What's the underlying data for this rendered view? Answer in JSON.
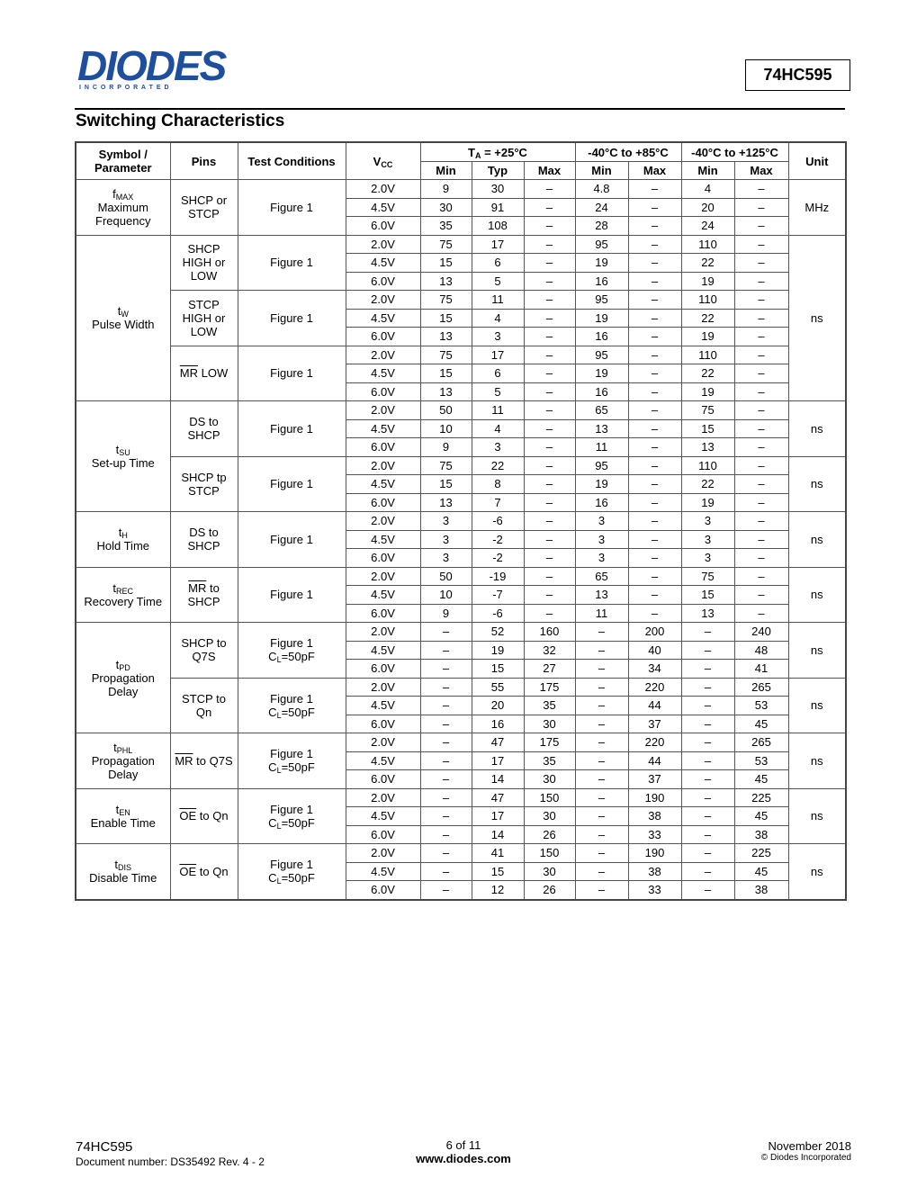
{
  "header": {
    "logo": "DIODES",
    "logo_sub": "I N C O R P O R A T E D",
    "part": "74HC595"
  },
  "section_title": "Switching Characteristics",
  "table": {
    "headers": {
      "symbol": "Symbol / Parameter",
      "pins": "Pins",
      "conditions": "Test Conditions",
      "vcc": {
        "pre": "V",
        "sub": "CC"
      },
      "ta25": {
        "pre": "T",
        "sub": "A",
        "post": " = +25°C"
      },
      "ta85": "-40°C to +85°C",
      "ta125": "-40°C to +125°C",
      "unit": "Unit",
      "sub": [
        "Min",
        "Typ",
        "Max",
        "Min",
        "Max",
        "Min",
        "Max"
      ]
    },
    "groups": [
      {
        "symbol": {
          "pre": "f",
          "sub": "MAX"
        },
        "param": [
          "Maximum",
          "Frequency"
        ],
        "unit": "MHz",
        "blocks": [
          {
            "pins": [
              "SHCP or",
              "STCP"
            ],
            "cond": [
              "Figure 1"
            ],
            "rows": [
              [
                "2.0V",
                9,
                30,
                "–",
                4.8,
                "–",
                4,
                "–"
              ],
              [
                "4.5V",
                30,
                91,
                "–",
                24,
                "–",
                20,
                "–"
              ],
              [
                "6.0V",
                35,
                108,
                "–",
                28,
                "–",
                24,
                "–"
              ]
            ]
          }
        ]
      },
      {
        "symbol": {
          "pre": "t",
          "sub": "W"
        },
        "param": [
          "Pulse Width"
        ],
        "unit": "ns",
        "blocks": [
          {
            "pins": [
              "SHCP",
              "HIGH or",
              "LOW"
            ],
            "cond": [
              "Figure 1"
            ],
            "rows": [
              [
                "2.0V",
                75,
                17,
                "–",
                95,
                "–",
                110,
                "–"
              ],
              [
                "4.5V",
                15,
                6,
                "–",
                19,
                "–",
                22,
                "–"
              ],
              [
                "6.0V",
                13,
                5,
                "–",
                16,
                "–",
                19,
                "–"
              ]
            ]
          },
          {
            "pins": [
              "STCP",
              "HIGH or",
              "LOW"
            ],
            "cond": [
              "Figure 1"
            ],
            "rows": [
              [
                "2.0V",
                75,
                11,
                "–",
                95,
                "–",
                110,
                "–"
              ],
              [
                "4.5V",
                15,
                4,
                "–",
                19,
                "–",
                22,
                "–"
              ],
              [
                "6.0V",
                13,
                3,
                "–",
                16,
                "–",
                19,
                "–"
              ]
            ]
          },
          {
            "pins": [
              {
                "over": "MR",
                "text": " LOW"
              }
            ],
            "cond": [
              "Figure 1"
            ],
            "rows": [
              [
                "2.0V",
                75,
                17,
                "–",
                95,
                "–",
                110,
                "–"
              ],
              [
                "4.5V",
                15,
                6,
                "–",
                19,
                "–",
                22,
                "–"
              ],
              [
                "6.0V",
                13,
                5,
                "–",
                16,
                "–",
                19,
                "–"
              ]
            ]
          }
        ]
      },
      {
        "symbol": {
          "pre": "t",
          "sub": "SU"
        },
        "param": [
          "Set-up Time"
        ],
        "blocks": [
          {
            "pins": [
              "DS to",
              "SHCP"
            ],
            "cond": [
              "Figure 1"
            ],
            "unit": "ns",
            "rows": [
              [
                "2.0V",
                50,
                11,
                "–",
                65,
                "–",
                75,
                "–"
              ],
              [
                "4.5V",
                10,
                4,
                "–",
                13,
                "–",
                15,
                "–"
              ],
              [
                "6.0V",
                9,
                3,
                "–",
                11,
                "–",
                13,
                "–"
              ]
            ]
          },
          {
            "pins": [
              "SHCP tp",
              "STCP"
            ],
            "cond": [
              "Figure 1"
            ],
            "unit": "ns",
            "rows": [
              [
                "2.0V",
                75,
                22,
                "–",
                95,
                "–",
                110,
                "–"
              ],
              [
                "4.5V",
                15,
                8,
                "–",
                19,
                "–",
                22,
                "–"
              ],
              [
                "6.0V",
                13,
                7,
                "–",
                16,
                "–",
                19,
                "–"
              ]
            ]
          }
        ]
      },
      {
        "symbol": {
          "pre": "t",
          "sub": "H"
        },
        "param": [
          "Hold Time"
        ],
        "blocks": [
          {
            "pins": [
              "DS to",
              "SHCP"
            ],
            "cond": [
              "Figure 1"
            ],
            "unit": "ns",
            "rows": [
              [
                "2.0V",
                3,
                -6,
                "–",
                3,
                "–",
                3,
                "–"
              ],
              [
                "4.5V",
                3,
                -2,
                "–",
                3,
                "–",
                3,
                "–"
              ],
              [
                "6.0V",
                3,
                -2,
                "–",
                3,
                "–",
                3,
                "–"
              ]
            ]
          }
        ]
      },
      {
        "symbol": {
          "pre": "t",
          "sub": "REC"
        },
        "param": [
          "Recovery Time"
        ],
        "blocks": [
          {
            "pins": [
              {
                "over": "MR",
                "text": " to"
              },
              "SHCP"
            ],
            "cond": [
              "Figure 1"
            ],
            "unit": "ns",
            "rows": [
              [
                "2.0V",
                50,
                -19,
                "–",
                65,
                "–",
                75,
                "–"
              ],
              [
                "4.5V",
                10,
                -7,
                "–",
                13,
                "–",
                15,
                "–"
              ],
              [
                "6.0V",
                9,
                -6,
                "–",
                11,
                "–",
                13,
                "–"
              ]
            ]
          }
        ]
      },
      {
        "symbol": {
          "pre": "t",
          "sub": "PD"
        },
        "param": [
          "Propagation",
          "Delay"
        ],
        "blocks": [
          {
            "pins": [
              "SHCP to",
              "Q7S"
            ],
            "cond": [
              "Figure 1",
              {
                "pre": "C",
                "sub": "L",
                "post": "=50pF"
              }
            ],
            "unit": "ns",
            "rows": [
              [
                "2.0V",
                "–",
                52,
                160,
                "–",
                200,
                "–",
                240
              ],
              [
                "4.5V",
                "–",
                19,
                32,
                "–",
                40,
                "–",
                48
              ],
              [
                "6.0V",
                "–",
                15,
                27,
                "–",
                34,
                "–",
                41
              ]
            ]
          },
          {
            "pins": [
              "STCP to",
              "Qn"
            ],
            "cond": [
              "Figure 1",
              {
                "pre": "C",
                "sub": "L",
                "post": "=50pF"
              }
            ],
            "unit": "ns",
            "rows": [
              [
                "2.0V",
                "–",
                55,
                175,
                "–",
                220,
                "–",
                265
              ],
              [
                "4.5V",
                "–",
                20,
                35,
                "–",
                44,
                "–",
                53
              ],
              [
                "6.0V",
                "–",
                16,
                30,
                "–",
                37,
                "–",
                45
              ]
            ]
          }
        ]
      },
      {
        "symbol": {
          "pre": "t",
          "sub": "PHL"
        },
        "param": [
          "Propagation",
          "Delay"
        ],
        "blocks": [
          {
            "pins": [
              {
                "over": "MR",
                "text": " to Q7S"
              }
            ],
            "cond": [
              "Figure 1",
              {
                "pre": "C",
                "sub": "L",
                "post": "=50pF"
              }
            ],
            "unit": "ns",
            "rows": [
              [
                "2.0V",
                "–",
                47,
                175,
                "–",
                220,
                "–",
                265
              ],
              [
                "4.5V",
                "–",
                17,
                35,
                "–",
                44,
                "–",
                53
              ],
              [
                "6.0V",
                "–",
                14,
                30,
                "–",
                37,
                "–",
                45
              ]
            ]
          }
        ]
      },
      {
        "symbol": {
          "pre": "t",
          "sub": "EN"
        },
        "param": [
          "Enable Time"
        ],
        "blocks": [
          {
            "pins": [
              {
                "over": "OE",
                "text": " to Qn"
              }
            ],
            "cond": [
              "Figure 1",
              {
                "pre": "C",
                "sub": "L",
                "post": "=50pF"
              }
            ],
            "unit": "ns",
            "rows": [
              [
                "2.0V",
                "–",
                47,
                150,
                "–",
                190,
                "–",
                225
              ],
              [
                "4.5V",
                "–",
                17,
                30,
                "–",
                38,
                "–",
                45
              ],
              [
                "6.0V",
                "–",
                14,
                26,
                "–",
                33,
                "–",
                38
              ]
            ]
          }
        ]
      },
      {
        "symbol": {
          "pre": "t",
          "sub": "DIS"
        },
        "param": [
          "Disable Time"
        ],
        "blocks": [
          {
            "pins": [
              {
                "over": "OE",
                "text": " to Qn"
              }
            ],
            "cond": [
              "Figure 1",
              {
                "pre": "C",
                "sub": "L",
                "post": "=50pF"
              }
            ],
            "unit": "ns",
            "rows": [
              [
                "2.0V",
                "–",
                41,
                150,
                "–",
                190,
                "–",
                225
              ],
              [
                "4.5V",
                "–",
                15,
                30,
                "–",
                38,
                "–",
                45
              ],
              [
                "6.0V",
                "–",
                12,
                26,
                "–",
                33,
                "–",
                38
              ]
            ]
          }
        ]
      }
    ]
  },
  "footer": {
    "part": "74HC595",
    "doc": "Document number: DS35492  Rev. 4 - 2",
    "page": "6 of 11",
    "url": "www.diodes.com",
    "date": "November 2018",
    "copyright": "© Diodes Incorporated"
  }
}
